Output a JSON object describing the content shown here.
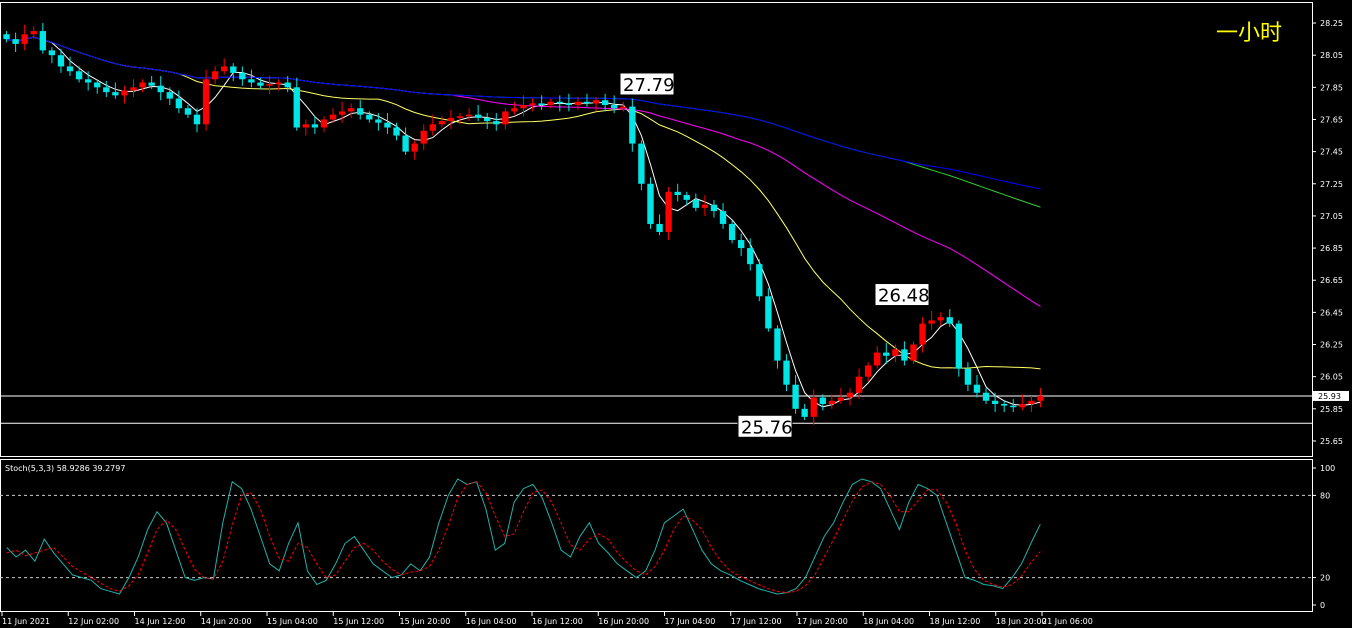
{
  "timeframe_label": "一小时",
  "colors": {
    "background": "#000000",
    "bull_candle": "#ff0000",
    "bear_candle": "#00e5e5",
    "ma_fast": "#ffffff",
    "ma_20": "#ffff66",
    "ma_50": "#ff00ff",
    "ma_100": "#33cc33",
    "ma_200": "#0000ff",
    "stoch_main": "#20b2aa",
    "stoch_signal": "#ff0000",
    "grid_frame": "#ffffff"
  },
  "chart_data": [
    {
      "type": "candlestick",
      "title": "",
      "ylim": [
        25.6,
        28.3
      ],
      "y_ticks": [
        "28.25",
        "28.05",
        "27.85",
        "27.65",
        "27.45",
        "27.25",
        "27.05",
        "26.85",
        "26.65",
        "26.45",
        "26.25",
        "26.05",
        "25.85",
        "25.65"
      ],
      "x_ticks": [
        "11 Jun 2021",
        "12 Jun 02:00",
        "14 Jun 12:00",
        "14 Jun 20:00",
        "15 Jun 04:00",
        "15 Jun 12:00",
        "15 Jun 20:00",
        "16 Jun 04:00",
        "16 Jun 12:00",
        "16 Jun 20:00",
        "17 Jun 04:00",
        "17 Jun 12:00",
        "17 Jun 20:00",
        "18 Jun 04:00",
        "18 Jun 12:00",
        "18 Jun 20:00",
        "21 Jun 06:00"
      ],
      "current_price": "25.93",
      "horizontal_lines": [
        25.93,
        25.76
      ],
      "annotations": [
        {
          "text": "27.79",
          "price": 27.79
        },
        {
          "text": "26.48",
          "price": 26.48
        },
        {
          "text": "25.76",
          "price": 25.76
        }
      ],
      "closes": [
        28.15,
        28.12,
        28.18,
        28.2,
        28.08,
        28.05,
        27.98,
        27.95,
        27.9,
        27.88,
        27.85,
        27.82,
        27.8,
        27.83,
        27.85,
        27.88,
        27.86,
        27.82,
        27.78,
        27.72,
        27.68,
        27.62,
        27.9,
        27.95,
        27.98,
        27.94,
        27.9,
        27.88,
        27.86,
        27.87,
        27.88,
        27.85,
        27.6,
        27.62,
        27.6,
        27.65,
        27.68,
        27.7,
        27.72,
        27.68,
        27.65,
        27.63,
        27.6,
        27.55,
        27.45,
        27.5,
        27.58,
        27.62,
        27.64,
        27.66,
        27.67,
        27.68,
        27.66,
        27.64,
        27.62,
        27.7,
        27.72,
        27.74,
        27.75,
        27.74,
        27.76,
        27.75,
        27.74,
        27.76,
        27.75,
        27.77,
        27.74,
        27.72,
        27.73,
        27.5,
        27.25,
        27.0,
        26.95,
        27.2,
        27.18,
        27.15,
        27.1,
        27.12,
        27.08,
        27.0,
        26.9,
        26.85,
        26.75,
        26.55,
        26.35,
        26.15,
        26.0,
        25.85,
        25.8,
        25.92,
        25.88,
        25.9,
        25.92,
        25.95,
        26.05,
        26.12,
        26.2,
        26.18,
        26.22,
        26.15,
        26.25,
        26.38,
        26.4,
        26.42,
        26.38,
        26.1,
        26.0,
        25.95,
        25.9,
        25.88,
        25.87,
        25.86,
        25.88,
        25.9,
        25.93
      ],
      "stoch_main": [
        42,
        35,
        40,
        32,
        48,
        38,
        30,
        22,
        20,
        18,
        12,
        10,
        8,
        20,
        35,
        55,
        68,
        60,
        40,
        20,
        18,
        20,
        19,
        60,
        90,
        85,
        70,
        50,
        30,
        25,
        45,
        60,
        25,
        15,
        18,
        30,
        45,
        50,
        40,
        30,
        25,
        20,
        22,
        30,
        25,
        35,
        60,
        80,
        92,
        88,
        90,
        70,
        40,
        45,
        75,
        85,
        88,
        78,
        60,
        40,
        35,
        50,
        60,
        45,
        38,
        30,
        25,
        20,
        25,
        40,
        60,
        65,
        70,
        55,
        40,
        30,
        25,
        22,
        18,
        15,
        12,
        10,
        8,
        9,
        12,
        20,
        35,
        50,
        60,
        75,
        88,
        92,
        90,
        85,
        70,
        55,
        75,
        88,
        85,
        80,
        60,
        40,
        20,
        18,
        15,
        14,
        12,
        20,
        30,
        45,
        59
      ],
      "stoch_signal": [
        38,
        40,
        36,
        38,
        40,
        42,
        35,
        28,
        24,
        20,
        16,
        12,
        10,
        14,
        22,
        38,
        55,
        62,
        55,
        40,
        26,
        20,
        19,
        32,
        58,
        80,
        82,
        70,
        50,
        34,
        32,
        45,
        42,
        30,
        20,
        22,
        32,
        42,
        45,
        40,
        32,
        26,
        22,
        24,
        25,
        28,
        40,
        58,
        78,
        88,
        90,
        82,
        65,
        50,
        52,
        68,
        82,
        84,
        75,
        60,
        44,
        40,
        48,
        52,
        48,
        38,
        31,
        25,
        22,
        28,
        40,
        55,
        65,
        62,
        55,
        42,
        32,
        25,
        21,
        18,
        15,
        12,
        10,
        9,
        10,
        14,
        22,
        35,
        48,
        62,
        76,
        86,
        90,
        88,
        80,
        68,
        68,
        76,
        84,
        84,
        75,
        60,
        40,
        26,
        18,
        15,
        13,
        15,
        21,
        31,
        39
      ]
    }
  ],
  "stoch_label": "Stoch(5,3,3) 58.9286 39.2797",
  "stoch_ticks": [
    "100",
    "80",
    "20",
    "0"
  ]
}
